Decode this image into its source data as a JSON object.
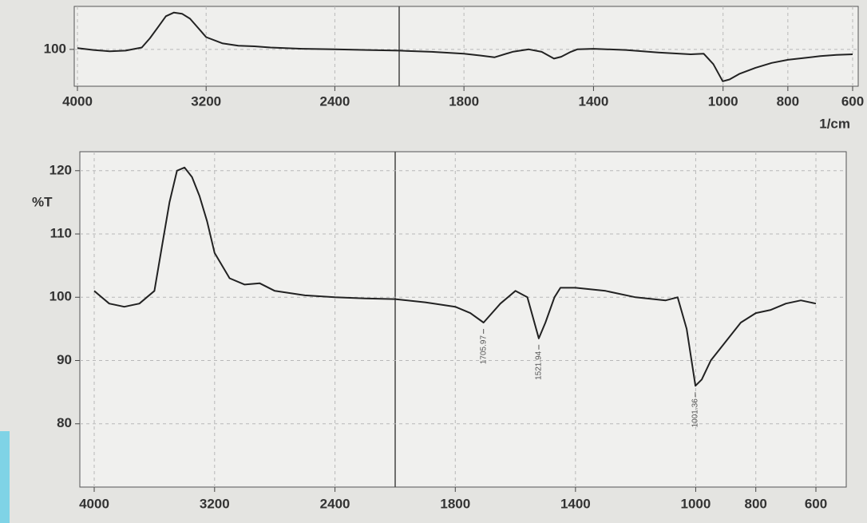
{
  "chart_data": [
    {
      "type": "line",
      "xlabel": "1/cm",
      "xlim": [
        4000,
        600
      ],
      "xscale": "piecewise",
      "xbreak": 2000,
      "xticks": [
        4000,
        3200,
        2400,
        1800,
        1400,
        1000,
        800,
        600
      ],
      "ylim": [
        94,
        107
      ],
      "yticks": [
        100
      ],
      "grid": true,
      "x": [
        4000,
        3900,
        3800,
        3700,
        3600,
        3550,
        3500,
        3450,
        3400,
        3350,
        3300,
        3250,
        3200,
        3100,
        3000,
        2900,
        2800,
        2600,
        2400,
        2200,
        2000,
        1900,
        1800,
        1750,
        1706,
        1650,
        1600,
        1560,
        1522,
        1500,
        1470,
        1450,
        1400,
        1300,
        1200,
        1100,
        1060,
        1030,
        1001,
        980,
        950,
        900,
        850,
        800,
        750,
        700,
        650,
        600
      ],
      "series": [
        {
          "color": "#222222",
          "values": [
            100.2,
            99.9,
            99.7,
            99.8,
            100.3,
            101.8,
            103.6,
            105.4,
            106,
            105.8,
            105,
            103.5,
            102,
            101,
            100.6,
            100.5,
            100.3,
            100.1,
            100,
            99.9,
            99.8,
            99.6,
            99.3,
            99,
            98.7,
            99.6,
            100,
            99.6,
            98.5,
            98.8,
            99.6,
            100,
            100.1,
            99.9,
            99.5,
            99.2,
            99.3,
            97.6,
            94.8,
            95.1,
            96,
            97,
            97.8,
            98.3,
            98.6,
            98.9,
            99.1,
            99.2
          ]
        }
      ]
    },
    {
      "type": "line",
      "ylabel": "%T",
      "xlim": [
        4000,
        600
      ],
      "xscale": "piecewise",
      "xbreak": 2000,
      "xticks": [
        4000,
        3200,
        2400,
        1800,
        1400,
        1000,
        800,
        600
      ],
      "ylim": [
        70,
        123
      ],
      "yticks": [
        80,
        90,
        100,
        110,
        120
      ],
      "grid": true,
      "x": [
        4000,
        3900,
        3800,
        3700,
        3600,
        3550,
        3500,
        3450,
        3400,
        3350,
        3300,
        3250,
        3200,
        3100,
        3000,
        2900,
        2800,
        2600,
        2400,
        2200,
        2000,
        1900,
        1800,
        1750,
        1706,
        1650,
        1600,
        1560,
        1522,
        1500,
        1470,
        1450,
        1400,
        1300,
        1200,
        1100,
        1060,
        1030,
        1001,
        980,
        950,
        900,
        850,
        800,
        750,
        700,
        650,
        600
      ],
      "series": [
        {
          "color": "#222222",
          "values": [
            101,
            99,
            98.5,
            99,
            101,
            108,
            115,
            120,
            120.5,
            119,
            116,
            112,
            107,
            103,
            102,
            102.2,
            101,
            100.3,
            100,
            99.8,
            99.7,
            99.2,
            98.5,
            97.5,
            96,
            99,
            101,
            100,
            93.5,
            96,
            100,
            101.5,
            101.5,
            101,
            100,
            99.5,
            100,
            95,
            86,
            87,
            90,
            93,
            96,
            97.5,
            98,
            99,
            99.5,
            99
          ]
        }
      ],
      "annotations": [
        {
          "value": 1705.97,
          "label": "1705.97"
        },
        {
          "value": 1521.94,
          "label": "1521.94"
        },
        {
          "value": 1001.36,
          "label": "1001.36"
        }
      ]
    }
  ]
}
